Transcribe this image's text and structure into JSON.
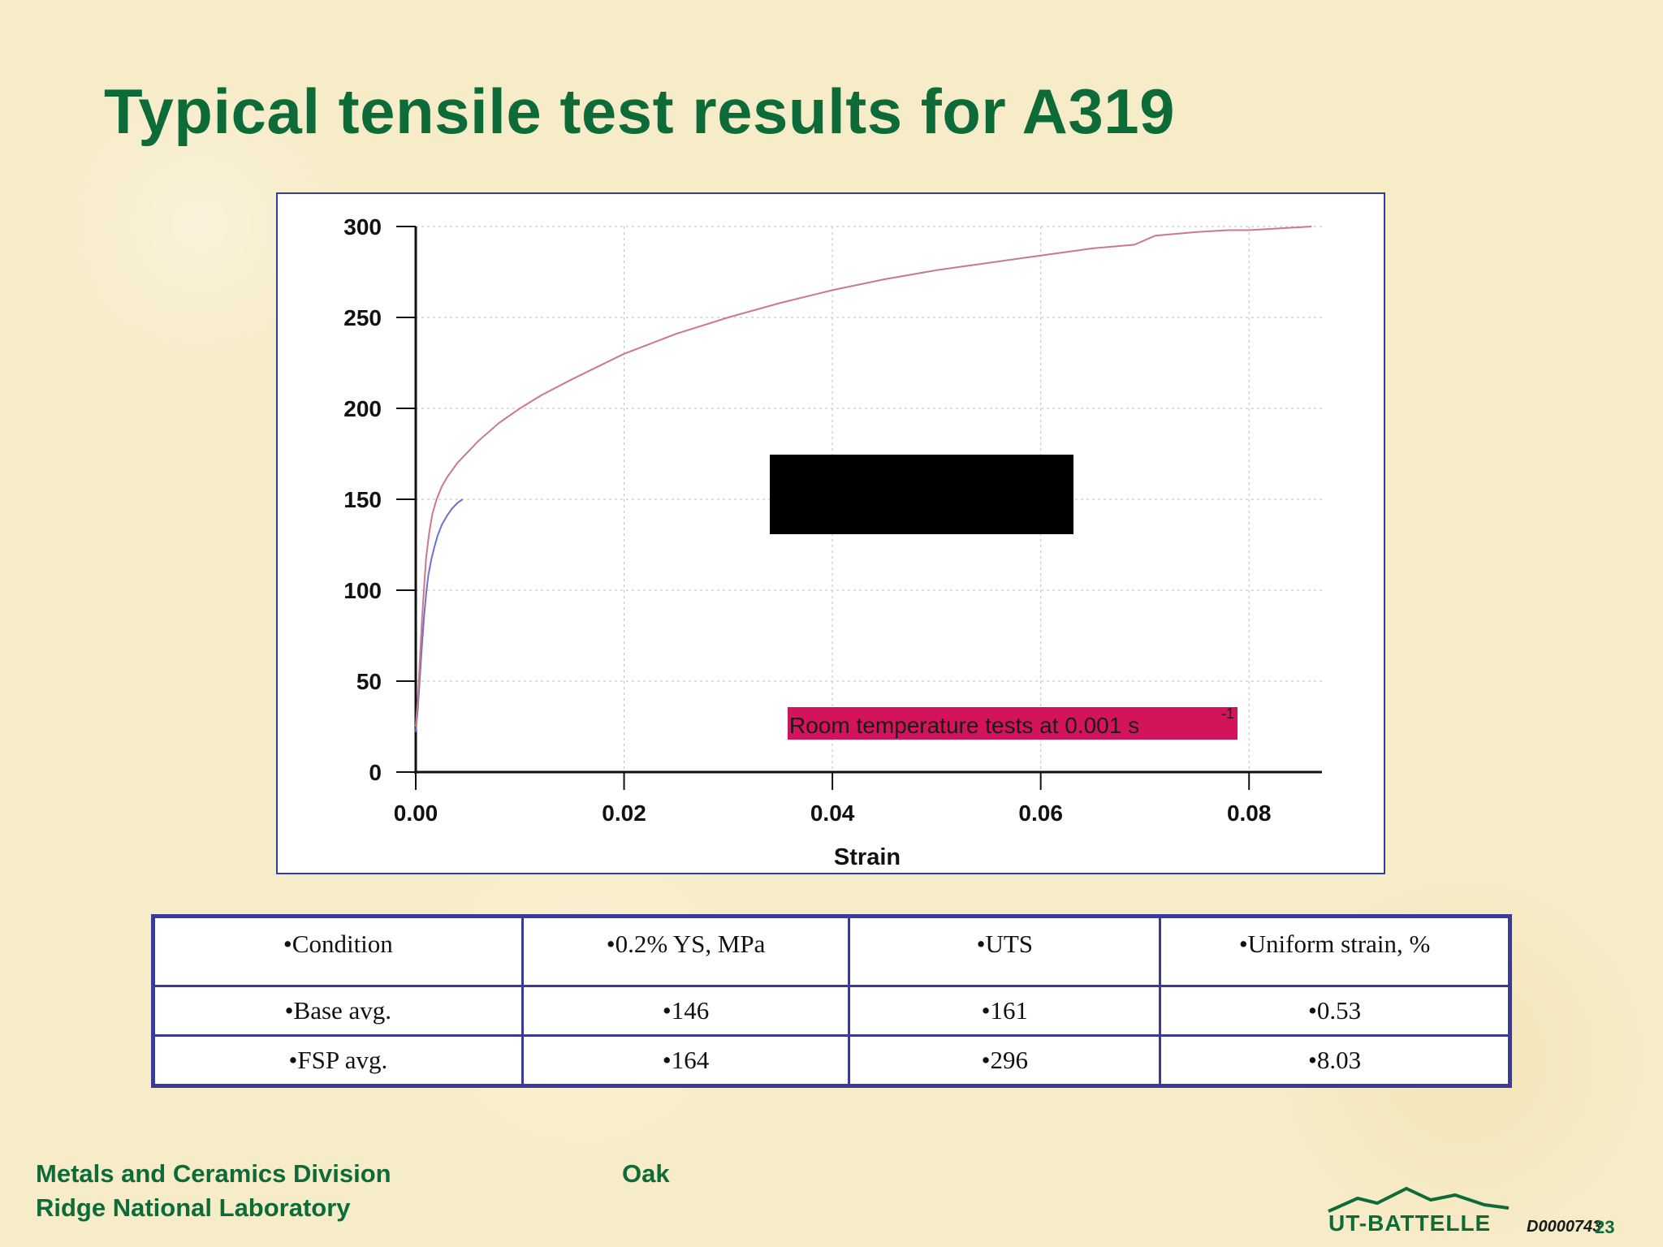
{
  "slide": {
    "title": "Typical tensile test results for A319"
  },
  "chart_data": {
    "type": "line",
    "title": "",
    "xlabel": "Strain",
    "ylabel": "",
    "xlim": [
      0,
      0.087
    ],
    "ylim": [
      0,
      300
    ],
    "x_ticks": [
      "0.00",
      "0.02",
      "0.04",
      "0.06",
      "0.08"
    ],
    "y_ticks": [
      "0",
      "50",
      "100",
      "150",
      "200",
      "250",
      "300"
    ],
    "grid": "dotted",
    "legend": "redacted (black box)",
    "annotation": {
      "text": "Room temperature tests at 0.001 s",
      "superscript": "-1",
      "background": "#d4145a"
    },
    "series": [
      {
        "color": "#6f6fcf",
        "x": [
          0.0,
          0.0002,
          0.0004,
          0.0006,
          0.0008,
          0.001,
          0.0012,
          0.0015,
          0.0018,
          0.0021,
          0.0025,
          0.003,
          0.0035,
          0.004,
          0.0045
        ],
        "y": [
          22,
          35,
          52,
          70,
          86,
          98,
          108,
          117,
          124,
          130,
          136,
          141,
          145,
          148,
          150
        ]
      },
      {
        "color": "#c97a86",
        "x": [
          0.0,
          0.0002,
          0.0004,
          0.0006,
          0.0008,
          0.001,
          0.0013,
          0.0016,
          0.002,
          0.0025,
          0.003,
          0.004,
          0.005,
          0.006,
          0.008,
          0.01,
          0.012,
          0.015,
          0.02,
          0.025,
          0.03,
          0.035,
          0.04,
          0.045,
          0.05,
          0.055,
          0.06,
          0.065,
          0.069,
          0.071,
          0.075,
          0.078,
          0.08,
          0.083,
          0.086
        ],
        "y": [
          25,
          40,
          62,
          84,
          102,
          118,
          132,
          142,
          150,
          157,
          162,
          170,
          176,
          182,
          192,
          200,
          207,
          216,
          230,
          241,
          250,
          258,
          265,
          271,
          276,
          280,
          284,
          288,
          290,
          295,
          297,
          298,
          298,
          299,
          300
        ]
      }
    ]
  },
  "table": {
    "headers": [
      "•Condition",
      "•0.2% YS, MPa",
      "•UTS",
      "•Uniform strain, %"
    ],
    "rows": [
      [
        "•Base avg.",
        "•146",
        "•161",
        "•0.53"
      ],
      [
        "•FSP avg.",
        "•164",
        "•296",
        "•8.03"
      ]
    ]
  },
  "footer": {
    "line1": "Metals and Ceramics Division",
    "oak": "Oak",
    "line2": "Ridge National Laboratory",
    "logo_text": "UT-BATTELLE",
    "doc_id": "D0000743",
    "page_number": "23"
  },
  "colors": {
    "title": "#0d6b3a",
    "chart_border": "#2f3fa0",
    "table_border": "#3a3a9a",
    "annotation_bg": "#d4145a"
  }
}
